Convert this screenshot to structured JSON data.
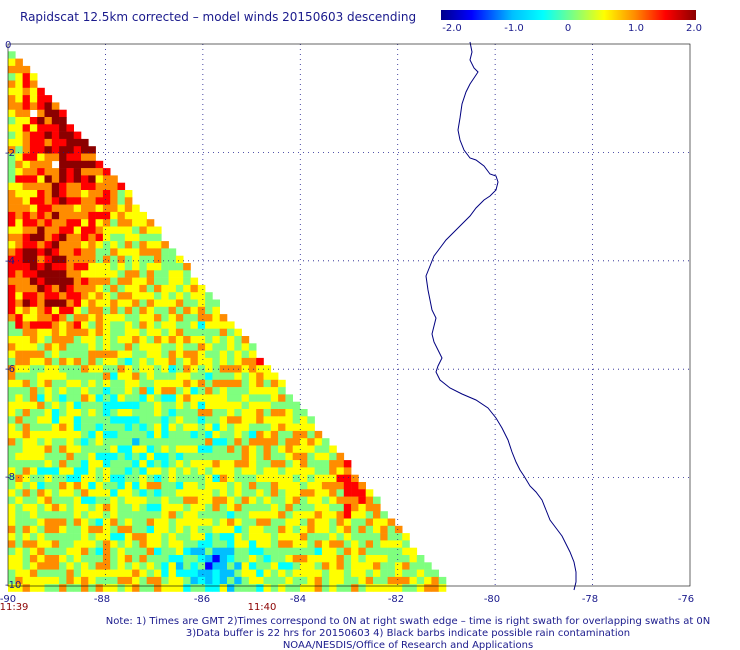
{
  "chart_data": {
    "type": "heatmap",
    "title": "Rapidscat 12.5km corrected – model winds 20150603 descending",
    "colorbar": {
      "min": -2.0,
      "max": 2.0,
      "tick_labels": [
        "-2.0",
        "-1.0",
        "0",
        "1.0",
        "2.0"
      ],
      "colors": [
        "#00008b",
        "#0000ff",
        "#00bfff",
        "#00ffff",
        "#7fff7f",
        "#ffff00",
        "#ff8c00",
        "#ff0000",
        "#8b0000"
      ]
    },
    "x_ticks": [
      "-90",
      "-88",
      "-86",
      "-84",
      "-82",
      "-80",
      "-78",
      "-76"
    ],
    "x_range": [
      -90,
      -76
    ],
    "y_ticks": [
      "0",
      "-2",
      "-4",
      "-6",
      "-8",
      "-10"
    ],
    "y_range": [
      -10,
      0
    ],
    "time_labels": [
      "11:39",
      "11:40"
    ],
    "grid": true,
    "swath_description": "triangular swath: west edge -90, east edge from -90 at 0 to -81.3 at -10",
    "notes": [
      "Note: 1) Times are GMT 2)Times correspond to 0N at right swath edge – time is right swath for overlapping swaths at 0N",
      "3)Data buffer is 22 hrs for 20150603 4) Black barbs indicate possible rain contamination",
      "NOAA/NESDIS/Office of Research and Applications"
    ]
  }
}
